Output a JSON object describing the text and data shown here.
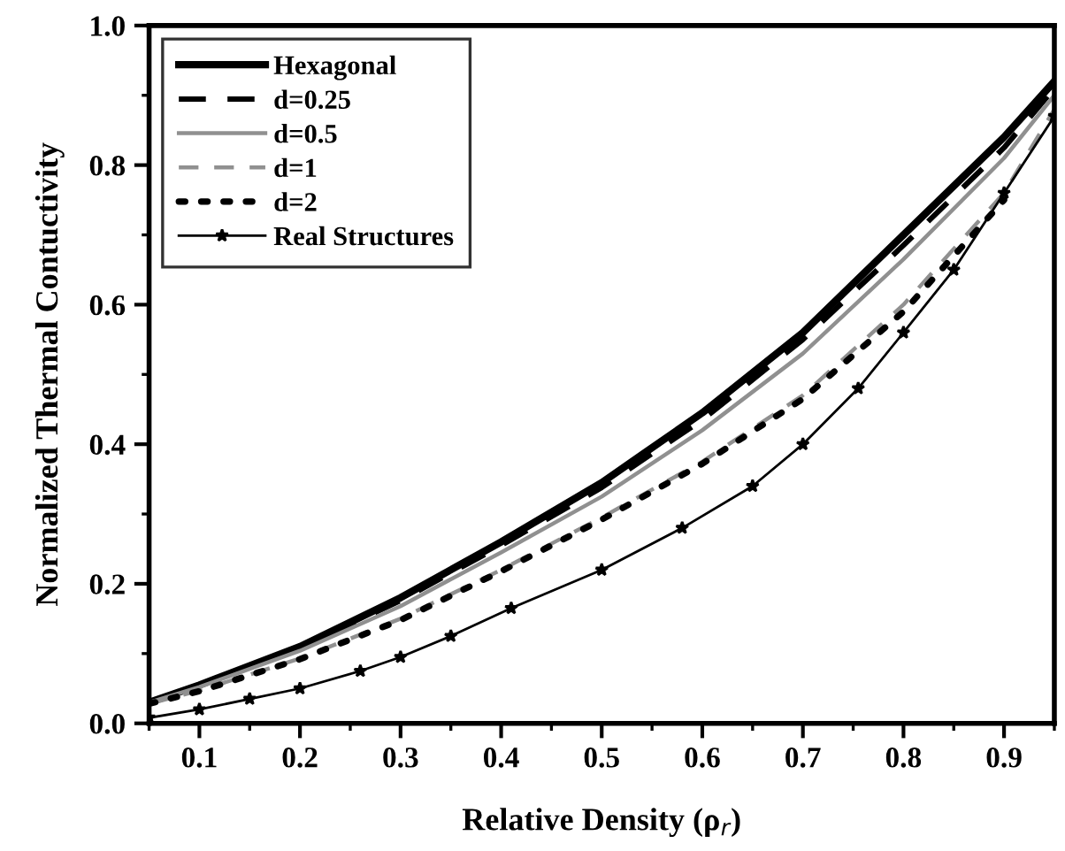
{
  "chart_data": {
    "type": "line",
    "xlabel": "Relative Density (ρ$_{r}$)",
    "ylabel": "Normalized Thermal Contuctivity",
    "xlim": [
      0.05,
      0.95
    ],
    "ylim": [
      0,
      1.0
    ],
    "xticks": [
      0.1,
      0.2,
      0.3,
      0.4,
      0.5,
      0.6,
      0.7,
      0.8,
      0.9
    ],
    "yticks": [
      {
        "value": 0,
        "label": "0.0"
      },
      0.2,
      0.4,
      0.6,
      0.8,
      {
        "value": 1,
        "label": "1.0"
      }
    ],
    "grid": false,
    "legend": "top left",
    "x": [
      0.05,
      0.1,
      0.2,
      0.3,
      0.4,
      0.5,
      0.6,
      0.7,
      0.8,
      0.9,
      0.95
    ],
    "series": [
      {
        "name": "Hexagonal",
        "color": "#000000",
        "line_style": "solid",
        "values": [
          0.03,
          0.055,
          0.11,
          0.18,
          0.26,
          0.345,
          0.445,
          0.56,
          0.7,
          0.84,
          0.92
        ]
      },
      {
        "name": "d=0.25",
        "color": "#000000",
        "line_style": "dashed",
        "values": [
          0.03,
          0.054,
          0.108,
          0.176,
          0.255,
          0.338,
          0.435,
          0.55,
          0.685,
          0.825,
          0.91
        ]
      },
      {
        "name": "d=0.5",
        "color": "#909090",
        "line_style": "solid",
        "values": [
          0.03,
          0.052,
          0.104,
          0.168,
          0.245,
          0.325,
          0.42,
          0.53,
          0.665,
          0.81,
          0.9
        ]
      },
      {
        "name": "d=1",
        "color": "#909090",
        "line_style": "dashed",
        "values": [
          0.028,
          0.047,
          0.093,
          0.15,
          0.22,
          0.295,
          0.375,
          0.47,
          0.6,
          0.76,
          0.88
        ]
      },
      {
        "name": "d=2",
        "color": "#000000",
        "line_style": "dotted",
        "values": [
          0.028,
          0.046,
          0.092,
          0.148,
          0.218,
          0.292,
          0.372,
          0.465,
          0.59,
          0.75,
          null
        ]
      },
      {
        "name": "Real Structures",
        "color": "#000000",
        "line_style": "solid",
        "marker": "star",
        "x": [
          0.05,
          0.1,
          0.15,
          0.2,
          0.26,
          0.3,
          0.35,
          0.41,
          0.5,
          0.58,
          0.65,
          0.7,
          0.755,
          0.8,
          0.85,
          0.9,
          0.95
        ],
        "values": [
          0.008,
          0.02,
          0.035,
          0.05,
          0.075,
          0.095,
          0.125,
          0.165,
          0.22,
          0.28,
          0.34,
          0.4,
          0.48,
          0.56,
          0.65,
          0.76,
          0.87
        ]
      }
    ]
  }
}
